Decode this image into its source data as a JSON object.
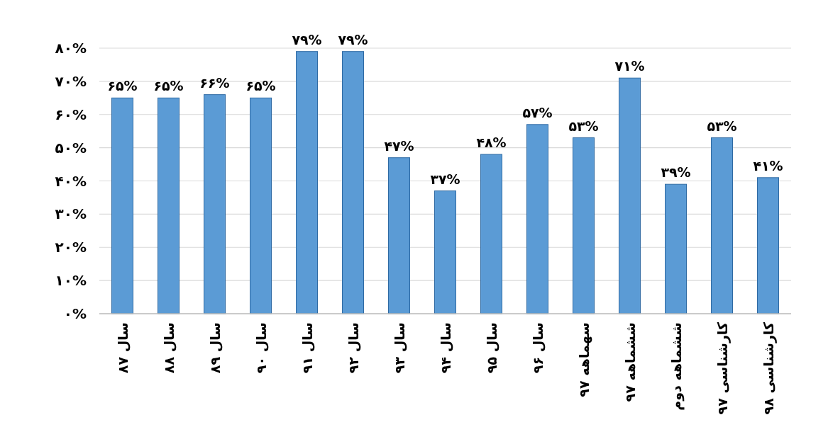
{
  "chart_data": {
    "type": "bar",
    "categories": [
      "سال ۸۷",
      "سال ۸۸",
      "سال ۸۹",
      "سال ۹۰",
      "سال ۹۱",
      "سال ۹۲",
      "سال ۹۳",
      "سال ۹۴",
      "سال ۹۵",
      "سال ۹۶",
      "سهماهه ۹۷",
      "ششماهه ۹۷",
      "ششماهه دوم",
      "کارشناسی ۹۷",
      "کارشناسی ۹۸"
    ],
    "values": [
      65,
      65,
      66,
      65,
      79,
      79,
      47,
      37,
      48,
      57,
      53,
      71,
      39,
      53,
      41
    ],
    "value_labels": [
      "۶۵%",
      "۶۵%",
      "۶۶%",
      "۶۵%",
      "۷۹%",
      "۷۹%",
      "۴۷%",
      "۳۷%",
      "۴۸%",
      "۵۷%",
      "۵۳%",
      "۷۱%",
      "۳۹%",
      "۵۳%",
      "۴۱%"
    ],
    "color": "#5b9bd5",
    "ylim": [
      0,
      80
    ],
    "yticks": [
      {
        "value": 0,
        "label": "۰%"
      },
      {
        "value": 10,
        "label": "۱۰%"
      },
      {
        "value": 20,
        "label": "۲۰%"
      },
      {
        "value": 30,
        "label": "۳۰%"
      },
      {
        "value": 40,
        "label": "۴۰%"
      },
      {
        "value": 50,
        "label": "۵۰%"
      },
      {
        "value": 60,
        "label": "۶۰%"
      },
      {
        "value": 70,
        "label": "۷۰%"
      },
      {
        "value": 80,
        "label": "۸۰%"
      }
    ],
    "grid": "y"
  }
}
